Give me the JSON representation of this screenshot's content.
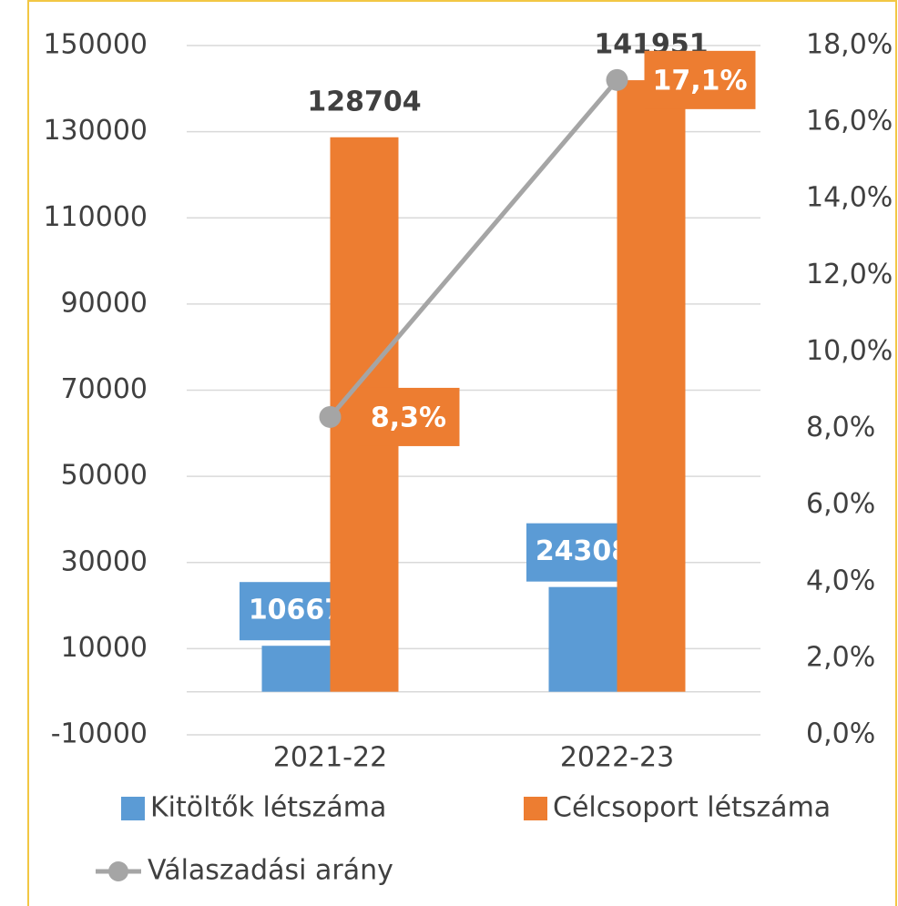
{
  "chart_data": {
    "type": "bar",
    "categories": [
      "2021-22",
      "2022-23"
    ],
    "series": [
      {
        "name": "Kitöltők létszáma",
        "color": "#5b9bd5",
        "values": [
          10667,
          24308
        ]
      },
      {
        "name": "Célcsoport létszáma",
        "color": "#ed7d31",
        "values": [
          128704,
          141951
        ]
      },
      {
        "name": "Válaszadási arány",
        "color": "#a5a5a5",
        "type": "line",
        "axis": "y2",
        "values": [
          8.3,
          17.1
        ],
        "value_labels": [
          "8,3%",
          "17,1%"
        ]
      }
    ],
    "ylim": [
      -10000,
      150000
    ],
    "yticks": [
      -10000,
      10000,
      30000,
      50000,
      70000,
      90000,
      110000,
      130000,
      150000
    ],
    "y2lim": [
      0,
      18
    ],
    "y2ticks": [
      {
        "value": 0,
        "label": "0,0%"
      },
      {
        "value": 2,
        "label": "2,0%"
      },
      {
        "value": 4,
        "label": "4,0%"
      },
      {
        "value": 6,
        "label": "6,0%"
      },
      {
        "value": 8,
        "label": "8,0%"
      },
      {
        "value": 10,
        "label": "10,0%"
      },
      {
        "value": 12,
        "label": "12,0%"
      },
      {
        "value": 14,
        "label": "14,0%"
      },
      {
        "value": 16,
        "label": "16,0%"
      },
      {
        "value": 18,
        "label": "18,0%"
      }
    ],
    "grid": true,
    "legend": "bottom"
  }
}
